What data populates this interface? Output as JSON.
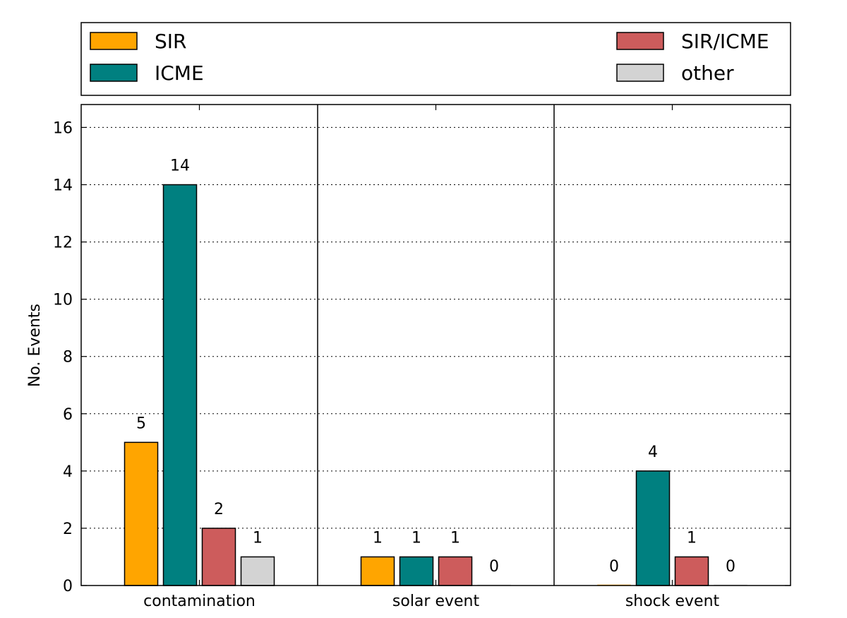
{
  "chart_data": {
    "type": "bar",
    "categories": [
      "contamination",
      "solar event",
      "shock event"
    ],
    "series": [
      {
        "name": "SIR",
        "color": "#ffa500",
        "values": [
          5,
          1,
          0
        ]
      },
      {
        "name": "ICME",
        "color": "#008080",
        "values": [
          14,
          1,
          4
        ]
      },
      {
        "name": "SIR/ICME",
        "color": "#cd5c5c",
        "values": [
          2,
          1,
          1
        ]
      },
      {
        "name": "other",
        "color": "#d3d3d3",
        "values": [
          1,
          0,
          0
        ]
      }
    ],
    "title": "",
    "xlabel": "",
    "ylabel": "No. Events",
    "ylim": [
      0,
      16.8
    ],
    "yticks": [
      0,
      2,
      4,
      6,
      8,
      10,
      12,
      14,
      16
    ],
    "grid": "y dotted",
    "legend": "top, above plot, two columns",
    "show_data_labels": true
  }
}
